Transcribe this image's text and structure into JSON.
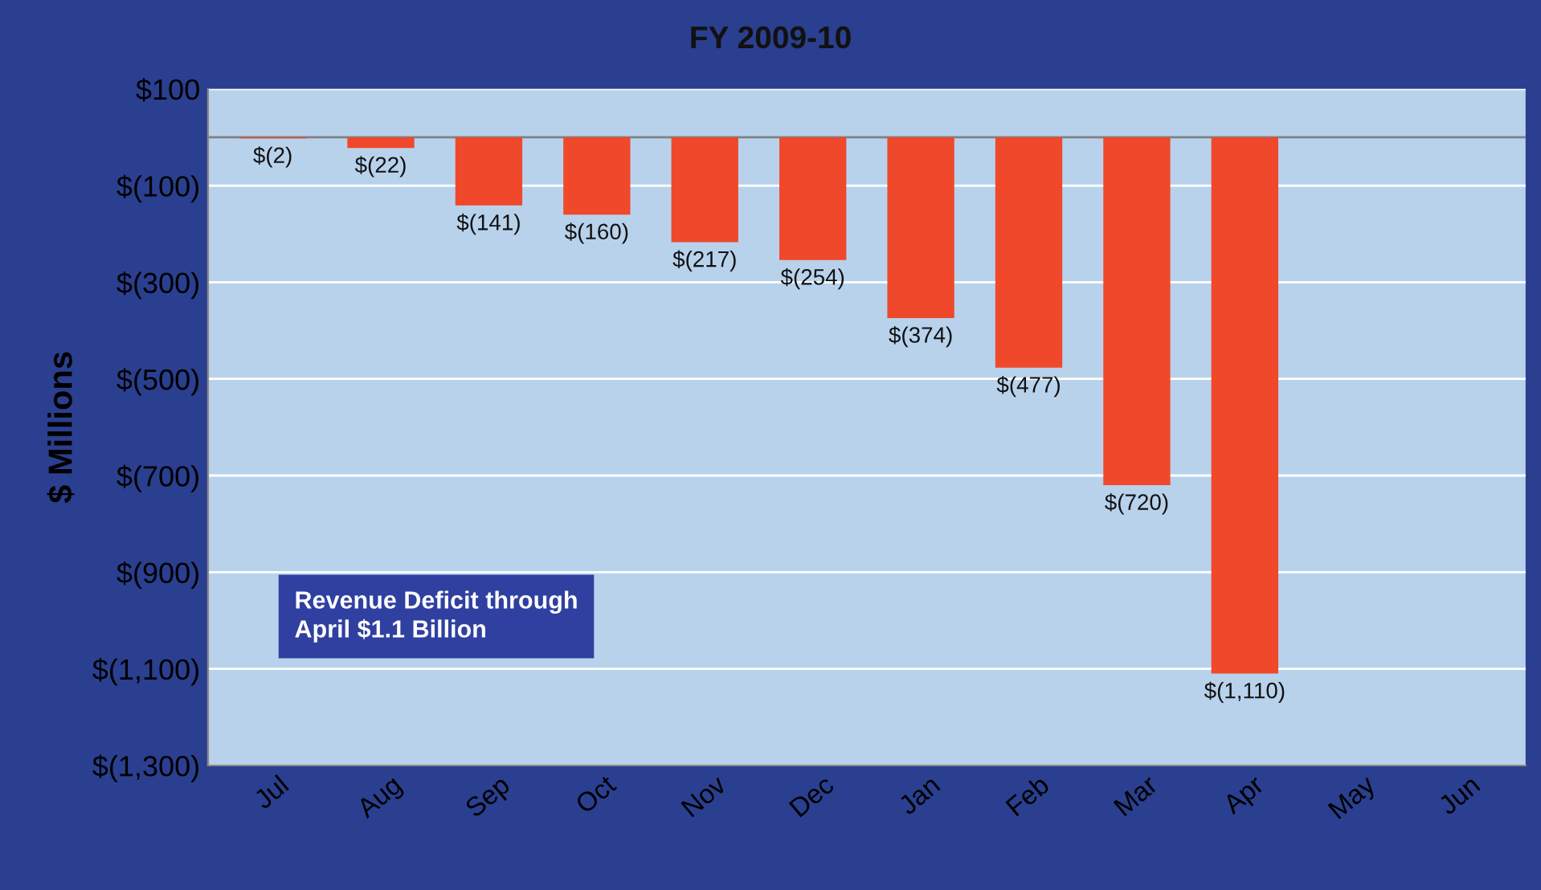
{
  "chart_data": {
    "type": "bar",
    "title": "FY 2009-10",
    "ylabel": "$ Millions",
    "categories": [
      "Jul",
      "Aug",
      "Sep",
      "Oct",
      "Nov",
      "Dec",
      "Jan",
      "Feb",
      "Mar",
      "Apr",
      "May",
      "Jun"
    ],
    "values": [
      -2,
      -22,
      -141,
      -160,
      -217,
      -254,
      -374,
      -477,
      -720,
      -1110,
      null,
      null
    ],
    "value_labels": [
      "$(2)",
      "$(22)",
      "$(141)",
      "$(160)",
      "$(217)",
      "$(254)",
      "$(374)",
      "$(477)",
      "$(720)",
      "$(1,110)",
      null,
      null
    ],
    "color": "#f0482a",
    "ylim": [
      -1300,
      100
    ],
    "yticks": [
      {
        "value": 100,
        "label": "$100"
      },
      {
        "value": -100,
        "label": "$(100)"
      },
      {
        "value": -300,
        "label": "$(300)"
      },
      {
        "value": -500,
        "label": "$(500)"
      },
      {
        "value": -700,
        "label": "$(700)"
      },
      {
        "value": -900,
        "label": "$(900)"
      },
      {
        "value": -1100,
        "label": "$(1,100)"
      },
      {
        "value": -1300,
        "label": "$(1,300)"
      }
    ],
    "grid": "y",
    "annotations": [
      "Revenue Deficit through\nApril $1.1 Billion"
    ]
  }
}
